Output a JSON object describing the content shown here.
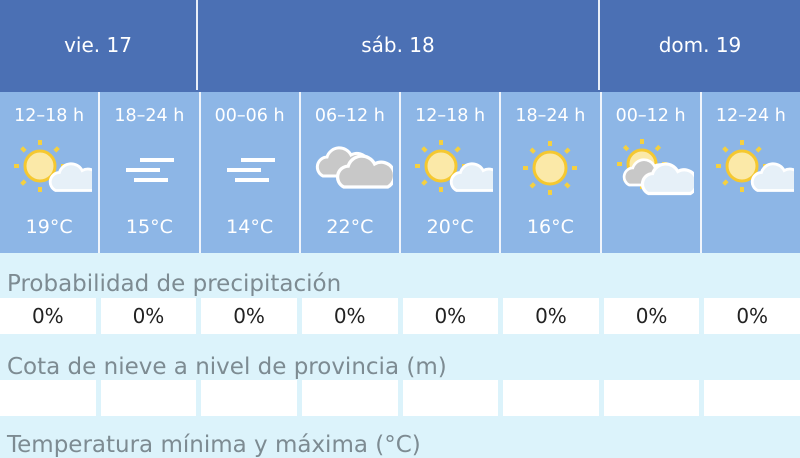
{
  "days": [
    {
      "label": "vie. 17"
    },
    {
      "label": "sáb. 18"
    },
    {
      "label": "dom. 19"
    }
  ],
  "periods": [
    {
      "hours": "12–18 h",
      "icon": "sun-cloud-icon",
      "temp": "19°C"
    },
    {
      "hours": "18–24 h",
      "icon": "fog-icon",
      "temp": "15°C"
    },
    {
      "hours": "00–06 h",
      "icon": "fog-icon",
      "temp": "14°C"
    },
    {
      "hours": "06–12 h",
      "icon": "cloudy-icon",
      "temp": "22°C"
    },
    {
      "hours": "12–18 h",
      "icon": "sun-cloud-icon",
      "temp": "20°C"
    },
    {
      "hours": "18–24 h",
      "icon": "sun-icon",
      "temp": "16°C"
    },
    {
      "hours": "00–12 h",
      "icon": "sun-grey-cloud-icon",
      "temp": ""
    },
    {
      "hours": "12–24 h",
      "icon": "sun-cloud-icon",
      "temp": ""
    }
  ],
  "precipitation": {
    "label": "Probabilidad de precipitación",
    "values": [
      "0%",
      "0%",
      "0%",
      "0%",
      "0%",
      "0%",
      "0%",
      "0%"
    ]
  },
  "snow": {
    "label": "Cota de nieve a nivel de provincia (m)",
    "values": [
      "",
      "",
      "",
      "",
      "",
      "",
      "",
      ""
    ]
  },
  "temperature": {
    "label": "Temperatura mínima y máxima (°C)"
  },
  "colors": {
    "header": "#4b70b4",
    "period": "#8db6e6",
    "background": "#dcf3fb",
    "sun": "#f5d040"
  }
}
